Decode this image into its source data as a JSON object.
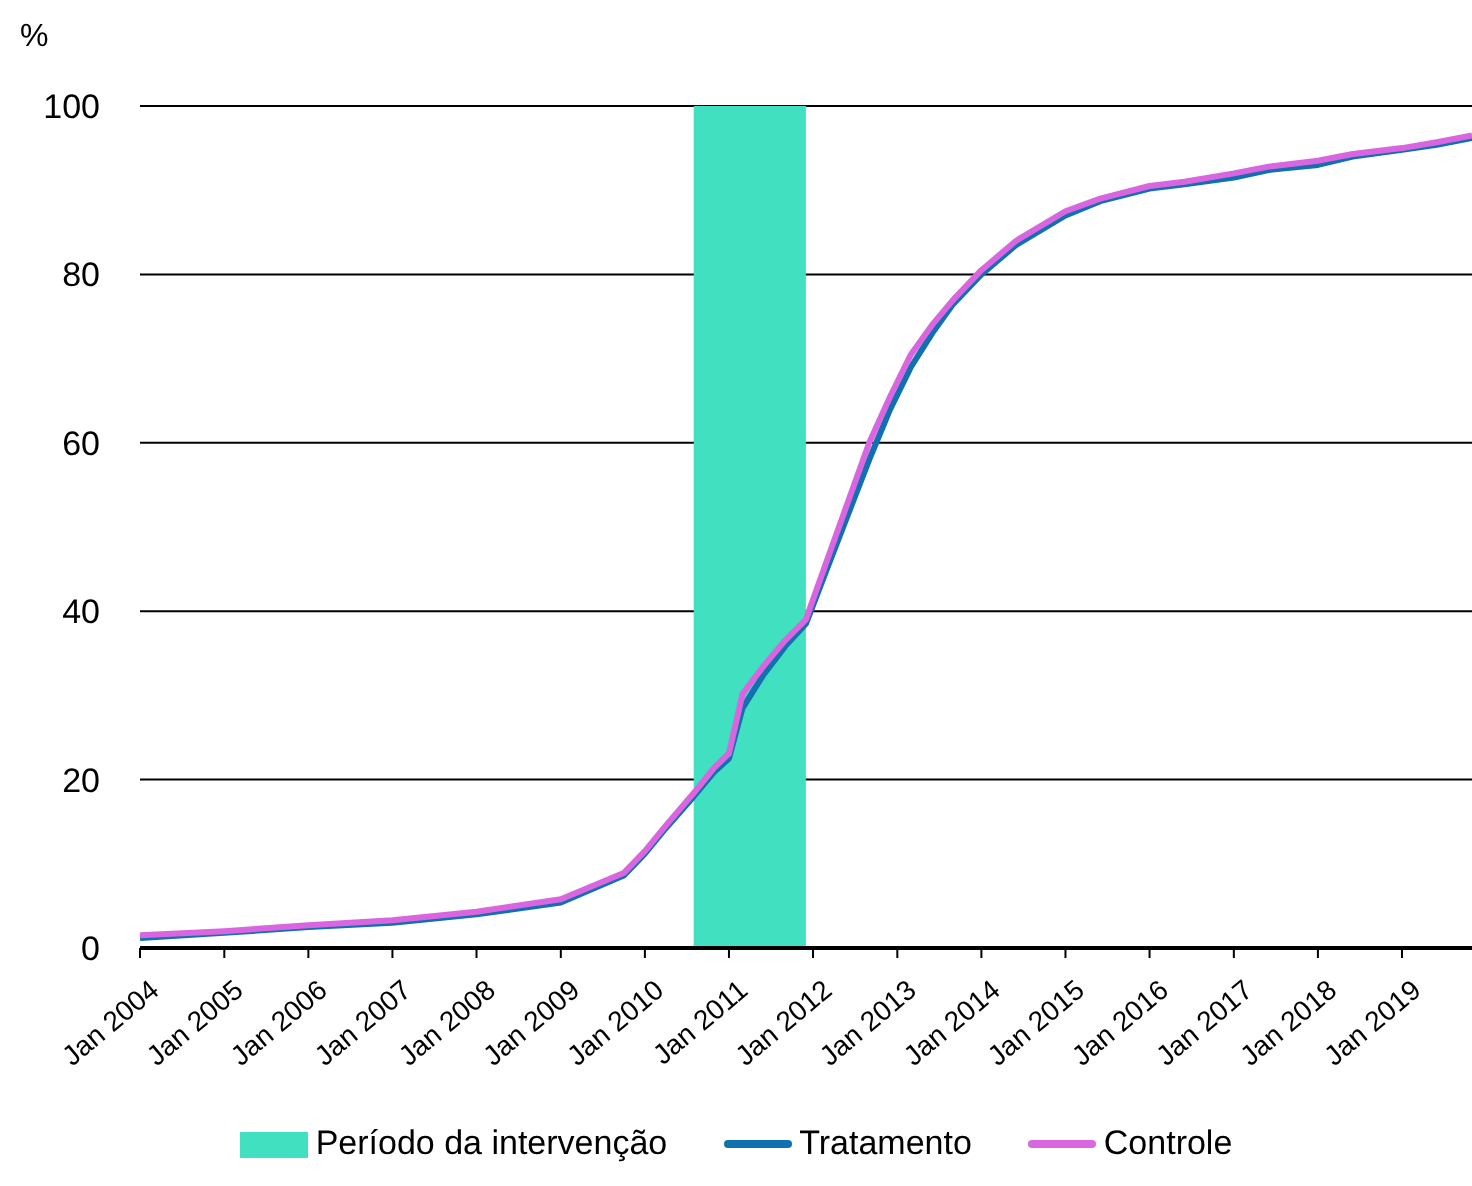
{
  "chart_data": {
    "type": "line",
    "ylabel": "%",
    "xlim": [
      "2004-01",
      "2019-11"
    ],
    "xticks": [
      {
        "value": "2004-01",
        "label": "Jan 2004"
      },
      {
        "value": "2005-01",
        "label": "Jan 2005"
      },
      {
        "value": "2006-01",
        "label": "Jan 2006"
      },
      {
        "value": "2007-01",
        "label": "Jan 2007"
      },
      {
        "value": "2008-01",
        "label": "Jan 2008"
      },
      {
        "value": "2009-01",
        "label": "Jan 2009"
      },
      {
        "value": "2010-01",
        "label": "Jan 2010"
      },
      {
        "value": "2011-01",
        "label": "Jan 2011"
      },
      {
        "value": "2012-01",
        "label": "Jan 2012"
      },
      {
        "value": "2013-01",
        "label": "Jan 2013"
      },
      {
        "value": "2014-01",
        "label": "Jan 2014"
      },
      {
        "value": "2015-01",
        "label": "Jan 2015"
      },
      {
        "value": "2016-01",
        "label": "Jan 2016"
      },
      {
        "value": "2017-01",
        "label": "Jan 2017"
      },
      {
        "value": "2018-01",
        "label": "Jan 2018"
      },
      {
        "value": "2019-01",
        "label": "Jan 2019"
      }
    ],
    "ylim": [
      0,
      100
    ],
    "yticks": [
      0,
      20,
      40,
      60,
      80,
      100
    ],
    "grid": "y",
    "legend": "bottom",
    "marker": "none",
    "line_style": "solid",
    "bands": [
      {
        "axis": "x",
        "from": "2010-08",
        "to": "2011-12",
        "label": "Período da intervenção",
        "color": "#40e0c0"
      }
    ],
    "series": [
      {
        "name": "Tratamento",
        "color": "#1070b0",
        "x": [
          "2004-01",
          "2005-01",
          "2006-01",
          "2007-01",
          "2008-01",
          "2009-01",
          "2009-10",
          "2010-01",
          "2010-04",
          "2010-08",
          "2010-11",
          "2011-01",
          "2011-03",
          "2011-06",
          "2011-09",
          "2011-12",
          "2012-03",
          "2012-06",
          "2012-09",
          "2012-12",
          "2013-03",
          "2013-06",
          "2013-09",
          "2014-01",
          "2014-06",
          "2015-01",
          "2015-06",
          "2016-01",
          "2016-06",
          "2017-01",
          "2017-06",
          "2018-01",
          "2018-06",
          "2019-01",
          "2019-06",
          "2019-11"
        ],
        "values": [
          1.2,
          1.8,
          2.5,
          3.0,
          4.0,
          5.4,
          8.6,
          11.2,
          14.2,
          18.0,
          21.0,
          22.5,
          28.5,
          32.5,
          35.8,
          38.5,
          45,
          51.5,
          58,
          64,
          69,
          73,
          76.5,
          80,
          83.5,
          87,
          88.7,
          90.2,
          90.7,
          91.5,
          92.4,
          93,
          94,
          94.8,
          95.4,
          96.2
        ]
      },
      {
        "name": "Controle",
        "color": "#d966e0",
        "x": [
          "2004-01",
          "2005-01",
          "2006-01",
          "2007-01",
          "2008-01",
          "2009-01",
          "2009-10",
          "2010-01",
          "2010-04",
          "2010-08",
          "2010-11",
          "2011-01",
          "2011-03",
          "2011-06",
          "2011-09",
          "2011-12",
          "2012-03",
          "2012-06",
          "2012-09",
          "2012-12",
          "2013-03",
          "2013-06",
          "2013-09",
          "2014-01",
          "2014-06",
          "2015-01",
          "2015-06",
          "2016-01",
          "2016-06",
          "2017-01",
          "2017-06",
          "2018-01",
          "2018-06",
          "2019-01",
          "2019-06",
          "2019-11"
        ],
        "values": [
          1.5,
          2.0,
          2.7,
          3.3,
          4.3,
          5.8,
          8.9,
          11.5,
          14.5,
          18.4,
          21.5,
          23.1,
          30.2,
          33.5,
          36.5,
          39,
          46,
          53,
          60,
          65.5,
          70.5,
          74,
          77,
          80.5,
          84,
          87.5,
          89,
          90.5,
          91,
          92,
          92.8,
          93.5,
          94.3,
          95,
          95.7,
          96.5
        ]
      }
    ]
  }
}
